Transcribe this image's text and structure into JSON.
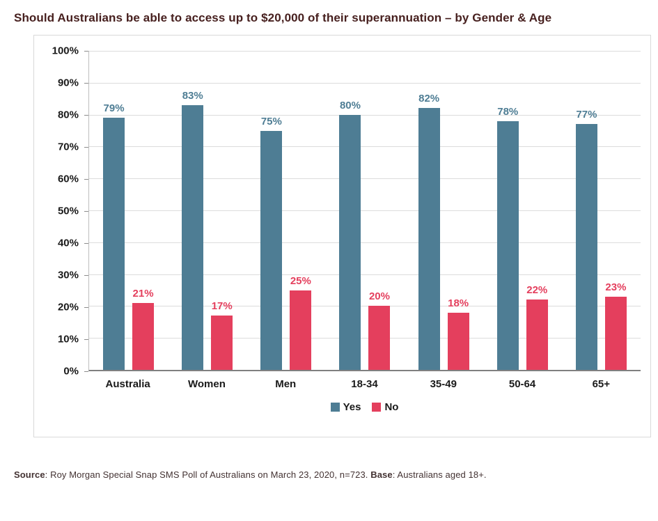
{
  "title": "Should Australians be able to access up to $20,000 of their superannuation – by Gender & Age",
  "colors": {
    "title": "#47201f",
    "yes": "#4e7d94",
    "no": "#e43f5d",
    "source_text": "#433232"
  },
  "source": {
    "label1": "Source",
    "text1": ": Roy Morgan Special Snap SMS Poll of Australians on March 23, 2020, n=723. ",
    "label2": "Base",
    "text2": ": Australians aged 18+."
  },
  "chart_data": {
    "type": "bar",
    "title": "Should Australians be able to access up to $20,000 of their superannuation – by Gender & Age",
    "categories": [
      "Australia",
      "Women",
      "Men",
      "18-34",
      "35-49",
      "50-64",
      "65+"
    ],
    "series": [
      {
        "name": "Yes",
        "color": "#4e7d94",
        "values": [
          79,
          83,
          75,
          80,
          82,
          78,
          77
        ]
      },
      {
        "name": "No",
        "color": "#e43f5d",
        "values": [
          21,
          17,
          25,
          20,
          18,
          22,
          23
        ]
      }
    ],
    "xlabel": "",
    "ylabel": "",
    "ylim": [
      0,
      100
    ],
    "ytick_step": 10,
    "ytick_suffix": "%",
    "value_suffix": "%",
    "grid": true,
    "legend_position": "bottom"
  }
}
